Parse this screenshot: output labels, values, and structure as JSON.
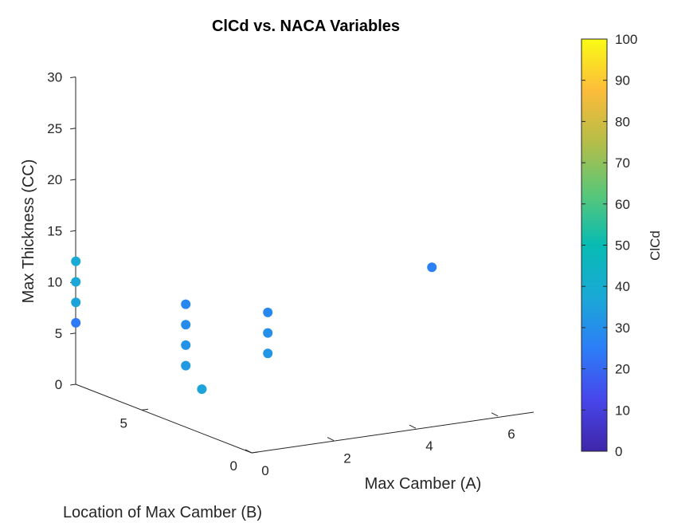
{
  "chart_data": {
    "type": "scatter",
    "title": "ClCd vs. NACA Variables",
    "xlabel": "Max Camber (A)",
    "ylabel": "Location of Max Camber (B)",
    "zlabel": "Max Thickness (CC)",
    "x_ticks": [
      "0",
      "2",
      "4",
      "6"
    ],
    "y_ticks": [
      "0",
      "5"
    ],
    "z_ticks": [
      "0",
      "5",
      "10",
      "15",
      "20",
      "25",
      "30"
    ],
    "colorbar": {
      "label": "ClCd",
      "range": [
        0,
        100
      ],
      "ticks": [
        "0",
        "10",
        "20",
        "30",
        "40",
        "50",
        "60",
        "70",
        "80",
        "90",
        "100"
      ],
      "colormap": "parula"
    },
    "points": [
      {
        "A": 0,
        "B": 8,
        "CC": 12,
        "ClCd": 38
      },
      {
        "A": 0,
        "B": 8,
        "CC": 10,
        "ClCd": 37
      },
      {
        "A": 0,
        "B": 8,
        "CC": 8,
        "ClCd": 36
      },
      {
        "A": 0,
        "B": 8,
        "CC": 6,
        "ClCd": 24
      },
      {
        "A": 0,
        "B": 3,
        "CC": 6,
        "ClCd": 33
      },
      {
        "A": 0,
        "B": 3,
        "CC": 12,
        "ClCd": 28
      },
      {
        "A": 0,
        "B": 3,
        "CC": 10,
        "ClCd": 29
      },
      {
        "A": 0,
        "B": 3,
        "CC": 8,
        "ClCd": 31
      },
      {
        "A": 2,
        "B": 3,
        "CC": 10,
        "ClCd": 28
      },
      {
        "A": 2,
        "B": 3,
        "CC": 8,
        "ClCd": 30
      },
      {
        "A": 2,
        "B": 3,
        "CC": 6,
        "ClCd": 32
      },
      {
        "A": 2,
        "B": 6,
        "CC": 0,
        "ClCd": 36
      },
      {
        "A": 6,
        "B": 3,
        "CC": 12,
        "ClCd": 26
      }
    ]
  }
}
